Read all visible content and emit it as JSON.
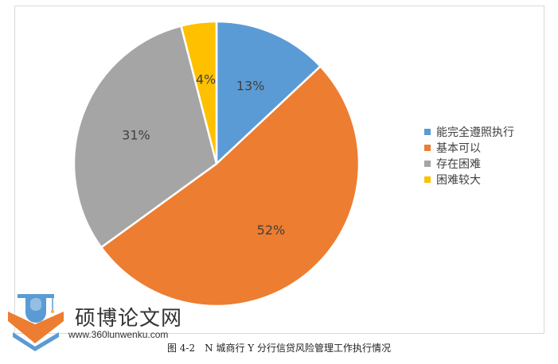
{
  "chart_data": {
    "type": "pie",
    "title": "",
    "categories": [
      "能完全遵照执行",
      "基本可以",
      "存在困难",
      "困难较大"
    ],
    "values": [
      13,
      52,
      31,
      4
    ],
    "unit": "%",
    "colors": [
      "#5b9bd5",
      "#ed7d31",
      "#a5a5a5",
      "#ffc000"
    ],
    "labels": [
      "13%",
      "52%",
      "31%",
      "4%"
    ],
    "legend_position": "right",
    "start_angle_deg": 0,
    "direction": "clockwise"
  },
  "legend": {
    "items": [
      {
        "label": "能完全遵照执行",
        "color": "#5b9bd5"
      },
      {
        "label": "基本可以",
        "color": "#ed7d31"
      },
      {
        "label": "存在困难",
        "color": "#a5a5a5"
      },
      {
        "label": "困难较大",
        "color": "#ffc000"
      }
    ]
  },
  "caption": "图 4-2　N 城商行 Y 分行信贷风险管理工作执行情况",
  "watermark": {
    "title": "硕博论文网",
    "url": "www.360lunwenku.com"
  }
}
